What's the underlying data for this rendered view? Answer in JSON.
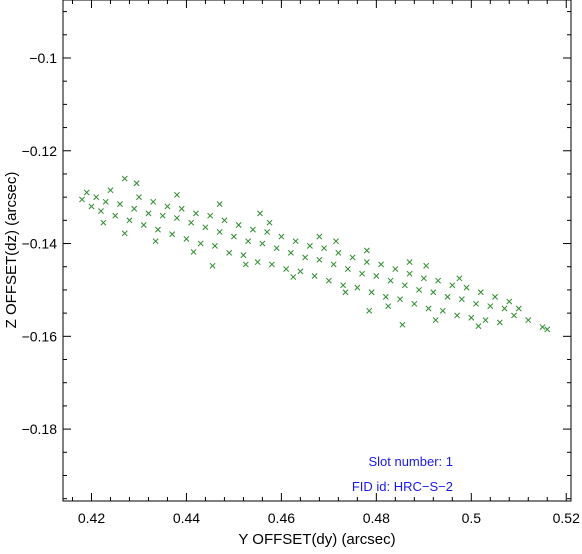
{
  "chart_data": {
    "type": "scatter",
    "title": "",
    "xlabel": "Y OFFSET(dy) (arcsec)",
    "ylabel": "Z OFFSET(dz) (arcsec)",
    "xlim": [
      0.414,
      0.521
    ],
    "ylim": [
      -0.1955,
      -0.0875
    ],
    "xticks": [
      {
        "value": 0.42,
        "label": "0.42"
      },
      {
        "value": 0.44,
        "label": "0.44"
      },
      {
        "value": 0.46,
        "label": "0.46"
      },
      {
        "value": 0.48,
        "label": "0.48"
      },
      {
        "value": 0.5,
        "label": "0.5"
      },
      {
        "value": 0.52,
        "label": "0.52"
      }
    ],
    "yticks": [
      {
        "value": -0.1,
        "label": "−0.1"
      },
      {
        "value": -0.12,
        "label": "−0.12"
      },
      {
        "value": -0.14,
        "label": "−0.14"
      },
      {
        "value": -0.16,
        "label": "−0.16"
      },
      {
        "value": -0.18,
        "label": "−0.18"
      }
    ],
    "marker": "x",
    "color": "#2e8b2e",
    "grid": false,
    "annotations": [
      "Slot number: 1",
      "FID id: HRC−S−2"
    ],
    "annotation_color": "#1a1ae6",
    "series": [
      {
        "points": [
          [
            0.418,
            -0.1305
          ],
          [
            0.419,
            -0.129
          ],
          [
            0.42,
            -0.132
          ],
          [
            0.421,
            -0.13
          ],
          [
            0.422,
            -0.133
          ],
          [
            0.423,
            -0.131
          ],
          [
            0.424,
            -0.1285
          ],
          [
            0.425,
            -0.134
          ],
          [
            0.426,
            -0.1315
          ],
          [
            0.427,
            -0.126
          ],
          [
            0.428,
            -0.135
          ],
          [
            0.429,
            -0.1325
          ],
          [
            0.43,
            -0.13
          ],
          [
            0.431,
            -0.136
          ],
          [
            0.432,
            -0.1335
          ],
          [
            0.433,
            -0.131
          ],
          [
            0.434,
            -0.137
          ],
          [
            0.435,
            -0.134
          ],
          [
            0.436,
            -0.132
          ],
          [
            0.437,
            -0.138
          ],
          [
            0.438,
            -0.1345
          ],
          [
            0.439,
            -0.1325
          ],
          [
            0.44,
            -0.139
          ],
          [
            0.441,
            -0.1355
          ],
          [
            0.442,
            -0.1335
          ],
          [
            0.443,
            -0.14
          ],
          [
            0.444,
            -0.1365
          ],
          [
            0.445,
            -0.134
          ],
          [
            0.446,
            -0.1405
          ],
          [
            0.447,
            -0.1375
          ],
          [
            0.448,
            -0.135
          ],
          [
            0.449,
            -0.142
          ],
          [
            0.45,
            -0.1385
          ],
          [
            0.451,
            -0.136
          ],
          [
            0.452,
            -0.1425
          ],
          [
            0.453,
            -0.1395
          ],
          [
            0.454,
            -0.137
          ],
          [
            0.455,
            -0.144
          ],
          [
            0.456,
            -0.14
          ],
          [
            0.457,
            -0.1375
          ],
          [
            0.458,
            -0.1445
          ],
          [
            0.459,
            -0.141
          ],
          [
            0.46,
            -0.1385
          ],
          [
            0.461,
            -0.1455
          ],
          [
            0.462,
            -0.142
          ],
          [
            0.463,
            -0.1395
          ],
          [
            0.464,
            -0.146
          ],
          [
            0.465,
            -0.143
          ],
          [
            0.466,
            -0.1405
          ],
          [
            0.467,
            -0.147
          ],
          [
            0.468,
            -0.1435
          ],
          [
            0.469,
            -0.141
          ],
          [
            0.47,
            -0.148
          ],
          [
            0.471,
            -0.1445
          ],
          [
            0.472,
            -0.142
          ],
          [
            0.473,
            -0.149
          ],
          [
            0.474,
            -0.1455
          ],
          [
            0.475,
            -0.143
          ],
          [
            0.476,
            -0.1495
          ],
          [
            0.477,
            -0.1465
          ],
          [
            0.478,
            -0.144
          ],
          [
            0.479,
            -0.1505
          ],
          [
            0.48,
            -0.147
          ],
          [
            0.481,
            -0.1445
          ],
          [
            0.482,
            -0.1515
          ],
          [
            0.483,
            -0.148
          ],
          [
            0.484,
            -0.1455
          ],
          [
            0.485,
            -0.152
          ],
          [
            0.486,
            -0.149
          ],
          [
            0.487,
            -0.1465
          ],
          [
            0.488,
            -0.153
          ],
          [
            0.489,
            -0.15
          ],
          [
            0.49,
            -0.1475
          ],
          [
            0.491,
            -0.154
          ],
          [
            0.492,
            -0.1505
          ],
          [
            0.493,
            -0.148
          ],
          [
            0.494,
            -0.1545
          ],
          [
            0.495,
            -0.1515
          ],
          [
            0.496,
            -0.149
          ],
          [
            0.497,
            -0.1555
          ],
          [
            0.498,
            -0.152
          ],
          [
            0.499,
            -0.1495
          ],
          [
            0.5,
            -0.156
          ],
          [
            0.501,
            -0.153
          ],
          [
            0.502,
            -0.1505
          ],
          [
            0.503,
            -0.1565
          ],
          [
            0.504,
            -0.1535
          ],
          [
            0.505,
            -0.1515
          ],
          [
            0.506,
            -0.157
          ],
          [
            0.507,
            -0.154
          ],
          [
            0.508,
            -0.1525
          ],
          [
            0.509,
            -0.1555
          ],
          [
            0.51,
            -0.154
          ],
          [
            0.512,
            -0.1565
          ],
          [
            0.515,
            -0.158
          ],
          [
            0.516,
            -0.1585
          ],
          [
            0.4225,
            -0.1355
          ],
          [
            0.427,
            -0.1378
          ],
          [
            0.4335,
            -0.1395
          ],
          [
            0.438,
            -0.1295
          ],
          [
            0.4415,
            -0.1418
          ],
          [
            0.447,
            -0.1315
          ],
          [
            0.4525,
            -0.1445
          ],
          [
            0.4575,
            -0.1355
          ],
          [
            0.4625,
            -0.1472
          ],
          [
            0.468,
            -0.1385
          ],
          [
            0.4735,
            -0.1505
          ],
          [
            0.478,
            -0.1415
          ],
          [
            0.4825,
            -0.1535
          ],
          [
            0.487,
            -0.144
          ],
          [
            0.4925,
            -0.1565
          ],
          [
            0.4975,
            -0.1475
          ],
          [
            0.5015,
            -0.1578
          ],
          [
            0.4905,
            -0.1448
          ],
          [
            0.4715,
            -0.1395
          ],
          [
            0.4455,
            -0.1448
          ],
          [
            0.4295,
            -0.127
          ],
          [
            0.4555,
            -0.1335
          ],
          [
            0.4785,
            -0.1545
          ],
          [
            0.4855,
            -0.1575
          ]
        ]
      }
    ]
  }
}
